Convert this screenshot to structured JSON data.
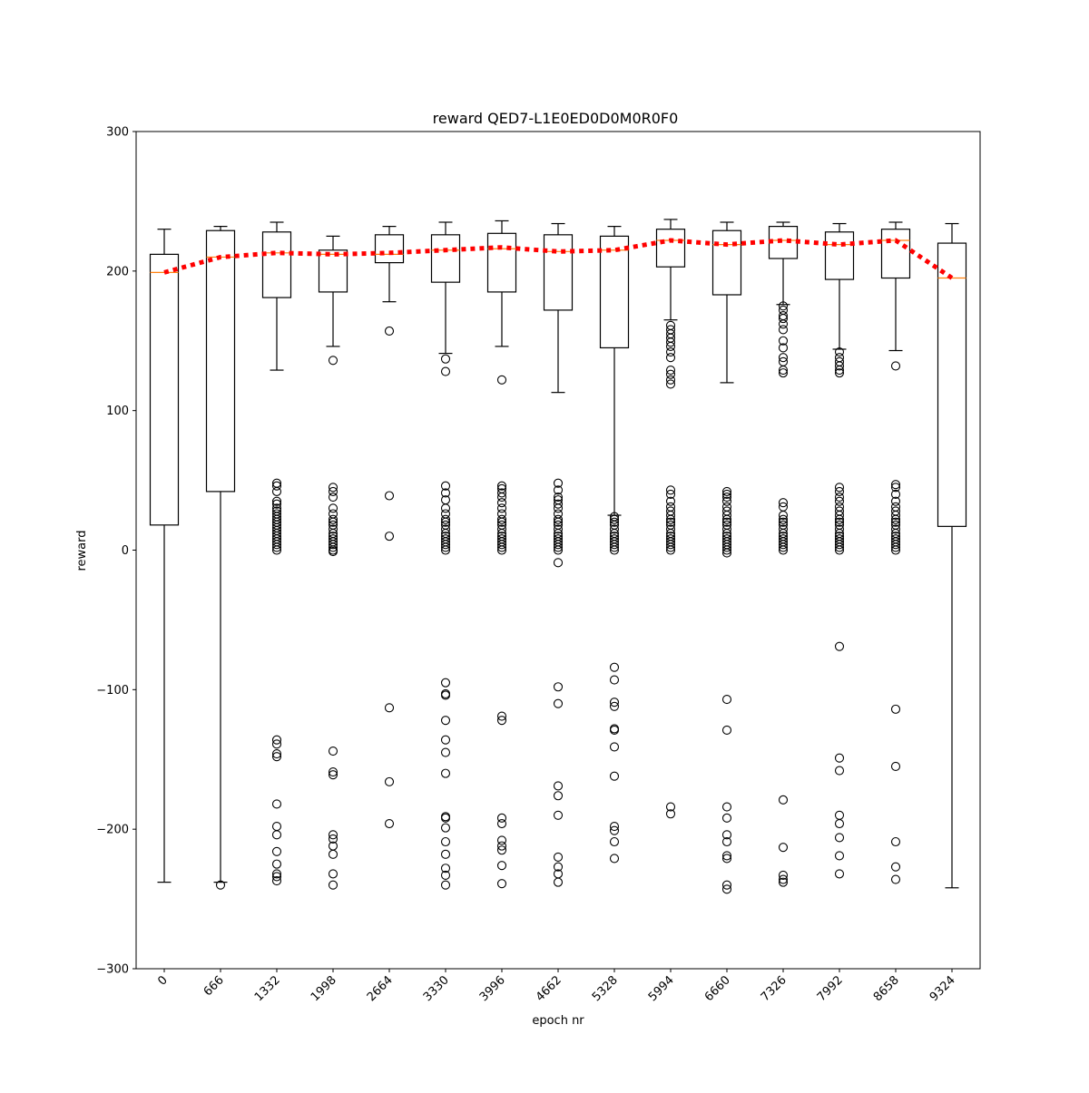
{
  "chart_data": {
    "type": "box",
    "title": "reward QED7-L1E0ED0D0M0R0F0",
    "xlabel": "epoch nr",
    "ylabel": "reward",
    "ylim": [
      -300,
      300
    ],
    "yticks": [
      -300,
      -200,
      -100,
      0,
      100,
      200,
      300
    ],
    "ytick_labels": [
      "−300",
      "−200",
      "−100",
      "0",
      "100",
      "200",
      "300"
    ],
    "categories": [
      "0",
      "666",
      "1332",
      "1998",
      "2664",
      "3330",
      "3996",
      "4662",
      "5328",
      "5994",
      "6660",
      "7326",
      "7992",
      "8658",
      "9324"
    ],
    "boxes": [
      {
        "whislo": -238,
        "q1": 18,
        "med": 199,
        "q3": 212,
        "whishi": 230,
        "fliers": []
      },
      {
        "whislo": -238,
        "q1": 42,
        "med": 210,
        "q3": 229,
        "whishi": 232,
        "fliers": [
          -240
        ]
      },
      {
        "whislo": 129,
        "q1": 181,
        "med": 213,
        "q3": 228,
        "whishi": 235,
        "fliers": [
          48,
          46,
          42,
          35,
          33,
          30,
          28,
          26,
          24,
          22,
          20,
          18,
          16,
          14,
          12,
          10,
          8,
          6,
          4,
          2,
          0,
          -136,
          -139,
          -146,
          -148,
          -182,
          -198,
          -204,
          -216,
          -225,
          -232,
          -234,
          -237
        ]
      },
      {
        "whislo": 146,
        "q1": 185,
        "med": 212,
        "q3": 215,
        "whishi": 225,
        "fliers": [
          136,
          45,
          42,
          38,
          30,
          26,
          22,
          20,
          18,
          15,
          12,
          10,
          8,
          6,
          4,
          2,
          0,
          -1,
          -144,
          -159,
          -161,
          -204,
          -207,
          -212,
          -218,
          -232,
          -240
        ]
      },
      {
        "whislo": 178,
        "q1": 206,
        "med": 212,
        "q3": 226,
        "whishi": 232,
        "fliers": [
          157,
          39,
          10,
          -113,
          -166,
          -196
        ]
      },
      {
        "whislo": 141,
        "q1": 192,
        "med": 215,
        "q3": 226,
        "whishi": 235,
        "fliers": [
          137,
          128,
          46,
          41,
          36,
          30,
          26,
          22,
          20,
          18,
          15,
          12,
          10,
          8,
          6,
          4,
          2,
          0,
          -95,
          -103,
          -104,
          -122,
          -136,
          -145,
          -160,
          -191,
          -192,
          -199,
          -209,
          -218,
          -228,
          -233,
          -240
        ]
      },
      {
        "whislo": 146,
        "q1": 185,
        "med": 216,
        "q3": 227,
        "whishi": 236,
        "fliers": [
          122,
          46,
          44,
          41,
          38,
          34,
          30,
          26,
          22,
          20,
          18,
          15,
          12,
          10,
          8,
          6,
          4,
          2,
          0,
          -119,
          -122,
          -192,
          -196,
          -208,
          -212,
          -215,
          -226,
          -239
        ]
      },
      {
        "whislo": 113,
        "q1": 172,
        "med": 214,
        "q3": 226,
        "whishi": 234,
        "fliers": [
          48,
          43,
          38,
          36,
          33,
          30,
          26,
          22,
          20,
          18,
          15,
          12,
          10,
          8,
          6,
          4,
          2,
          0,
          -9,
          -98,
          -110,
          -169,
          -176,
          -190,
          -220,
          -227,
          -232,
          -238
        ]
      },
      {
        "whislo": 25,
        "q1": 145,
        "med": 215,
        "q3": 225,
        "whishi": 232,
        "fliers": [
          24,
          22,
          20,
          18,
          15,
          12,
          10,
          8,
          6,
          4,
          2,
          0,
          -84,
          -93,
          -109,
          -112,
          -128,
          -129,
          -141,
          -162,
          -198,
          -201,
          -209,
          -221
        ]
      },
      {
        "whislo": 165,
        "q1": 203,
        "med": 222,
        "q3": 230,
        "whishi": 237,
        "fliers": [
          161,
          158,
          155,
          152,
          149,
          146,
          142,
          138,
          129,
          126,
          122,
          119,
          43,
          40,
          35,
          31,
          28,
          25,
          22,
          20,
          18,
          15,
          12,
          10,
          8,
          6,
          4,
          2,
          0,
          -184,
          -189
        ]
      },
      {
        "whislo": 120,
        "q1": 183,
        "med": 219,
        "q3": 229,
        "whishi": 235,
        "fliers": [
          42,
          40,
          38,
          35,
          31,
          28,
          25,
          22,
          20,
          18,
          15,
          12,
          10,
          8,
          6,
          4,
          2,
          0,
          -2,
          -107,
          -129,
          -184,
          -192,
          -204,
          -209,
          -219,
          -221,
          -240,
          -243
        ]
      },
      {
        "whislo": 176,
        "q1": 209,
        "med": 222,
        "q3": 232,
        "whishi": 235,
        "fliers": [
          175,
          172,
          168,
          166,
          162,
          158,
          150,
          145,
          138,
          135,
          129,
          127,
          34,
          31,
          25,
          22,
          20,
          18,
          15,
          12,
          10,
          8,
          6,
          4,
          2,
          0,
          -179,
          -213,
          -233,
          -236,
          -238
        ]
      },
      {
        "whislo": 144,
        "q1": 194,
        "med": 219,
        "q3": 228,
        "whishi": 234,
        "fliers": [
          142,
          138,
          135,
          132,
          129,
          127,
          45,
          42,
          38,
          35,
          31,
          28,
          25,
          22,
          20,
          18,
          15,
          12,
          10,
          8,
          6,
          4,
          2,
          0,
          -69,
          -149,
          -158,
          -190,
          -196,
          -206,
          -219,
          -232
        ]
      },
      {
        "whislo": 143,
        "q1": 195,
        "med": 222,
        "q3": 230,
        "whishi": 235,
        "fliers": [
          132,
          47,
          45,
          40,
          35,
          31,
          28,
          25,
          22,
          20,
          18,
          15,
          12,
          10,
          8,
          6,
          4,
          2,
          0,
          -114,
          -155,
          -209,
          -227,
          -236
        ]
      },
      {
        "whislo": -242,
        "q1": 17,
        "med": 195,
        "q3": 220,
        "whishi": 234,
        "fliers": []
      }
    ],
    "mean_line": {
      "values": [
        199,
        210,
        213,
        212,
        213,
        215,
        217,
        214,
        215,
        222,
        219,
        222,
        219,
        222,
        195
      ],
      "color": "#ff0000",
      "style": "dotted"
    },
    "colors": {
      "box": "#000000",
      "median": "#ff7f0e",
      "mean_line": "#ff0000"
    }
  }
}
